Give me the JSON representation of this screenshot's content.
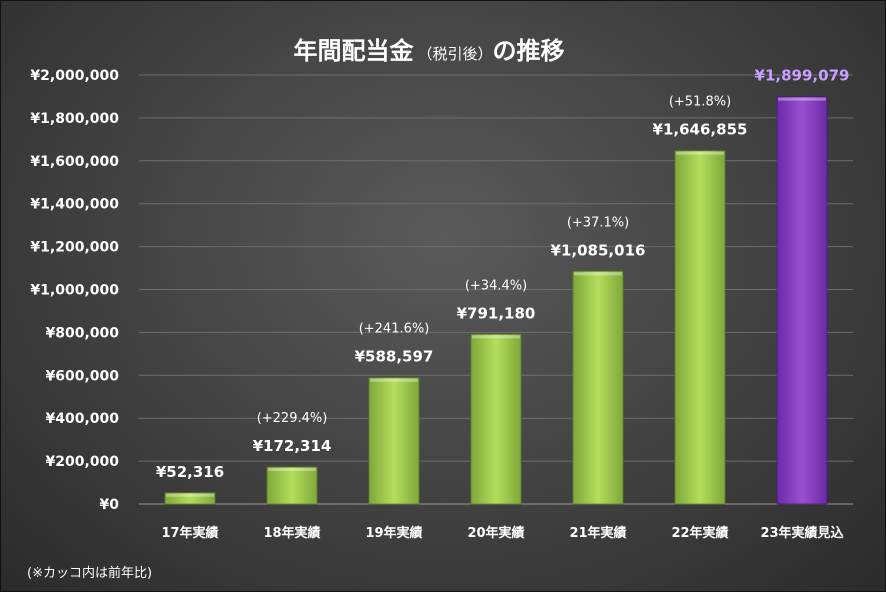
{
  "colors": {
    "bar_top": "#b5dd5c",
    "bar_bottom": "#7ea83a",
    "highlight_top": "#9a4fd0",
    "highlight_bottom": "#6a2aa8",
    "highlight_label": "#c9a0ff"
  },
  "chart_data": {
    "type": "bar",
    "title": "年間配当金",
    "title_suffix": "（税引後）",
    "title_end": "の推移",
    "categories": [
      "17年実績",
      "18年実績",
      "19年実績",
      "20年実績",
      "21年実績",
      "22年実績",
      "23年実績見込"
    ],
    "values": [
      52316,
      172314,
      588597,
      791180,
      1085016,
      1646855,
      1899079
    ],
    "value_labels": [
      "¥52,316",
      "¥172,314",
      "¥588,597",
      "¥791,180",
      "¥1,085,016",
      "¥1,646,855",
      "¥1,899,079"
    ],
    "growth_labels": [
      "",
      "(+229.4%)",
      "(+241.6%)",
      "(+34.4%)",
      "(+37.1%)",
      "(+51.8%)",
      ""
    ],
    "highlight_index": 6,
    "ylim": [
      0,
      2000000
    ],
    "y_ticks": [
      0,
      200000,
      400000,
      600000,
      800000,
      1000000,
      1200000,
      1400000,
      1600000,
      1800000,
      2000000
    ],
    "y_tick_labels": [
      "¥0",
      "¥200,000",
      "¥400,000",
      "¥600,000",
      "¥800,000",
      "¥1,000,000",
      "¥1,200,000",
      "¥1,400,000",
      "¥1,600,000",
      "¥1,800,000",
      "¥2,000,000"
    ],
    "grid": true,
    "xlabel": "",
    "ylabel": ""
  },
  "footnote": "(※カッコ内は前年比)"
}
